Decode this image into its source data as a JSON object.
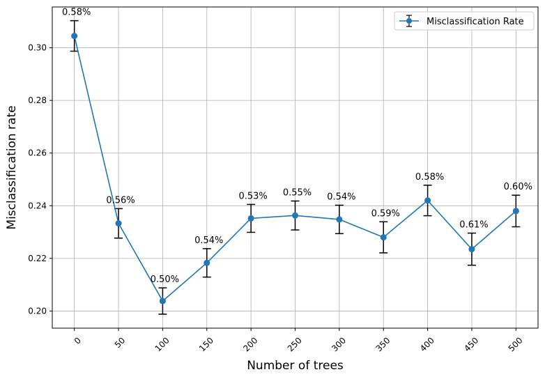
{
  "chart_data": {
    "type": "line",
    "x": [
      0,
      50,
      100,
      150,
      200,
      250,
      300,
      350,
      400,
      450,
      500
    ],
    "series": [
      {
        "name": "Misclassification Rate",
        "values": [
          0.3045,
          0.2333,
          0.2038,
          0.2183,
          0.2352,
          0.2363,
          0.2348,
          0.228,
          0.242,
          0.2235,
          0.238
        ],
        "error": [
          0.0058,
          0.0056,
          0.005,
          0.0054,
          0.0053,
          0.0055,
          0.0054,
          0.0059,
          0.0058,
          0.0061,
          0.006
        ],
        "labels": [
          "0.58%",
          "0.56%",
          "0.50%",
          "0.54%",
          "0.53%",
          "0.55%",
          "0.54%",
          "0.59%",
          "0.58%",
          "0.61%",
          "0.60%"
        ],
        "color": "#1f77b4"
      }
    ],
    "xlabel": "Number of trees",
    "ylabel": "Misclassification rate",
    "x_ticks": [
      "0",
      "50",
      "100",
      "150",
      "200",
      "250",
      "300",
      "350",
      "400",
      "450",
      "500"
    ],
    "y_ticks": [
      "0.20",
      "0.22",
      "0.24",
      "0.26",
      "0.28",
      "0.30"
    ],
    "y_tick_values": [
      0.2,
      0.22,
      0.24,
      0.26,
      0.28,
      0.3
    ],
    "xlim": [
      -25,
      525
    ],
    "ylim": [
      0.1935,
      0.3155
    ],
    "grid": true,
    "legend": "top-right",
    "errorbar_color": "#000000"
  }
}
